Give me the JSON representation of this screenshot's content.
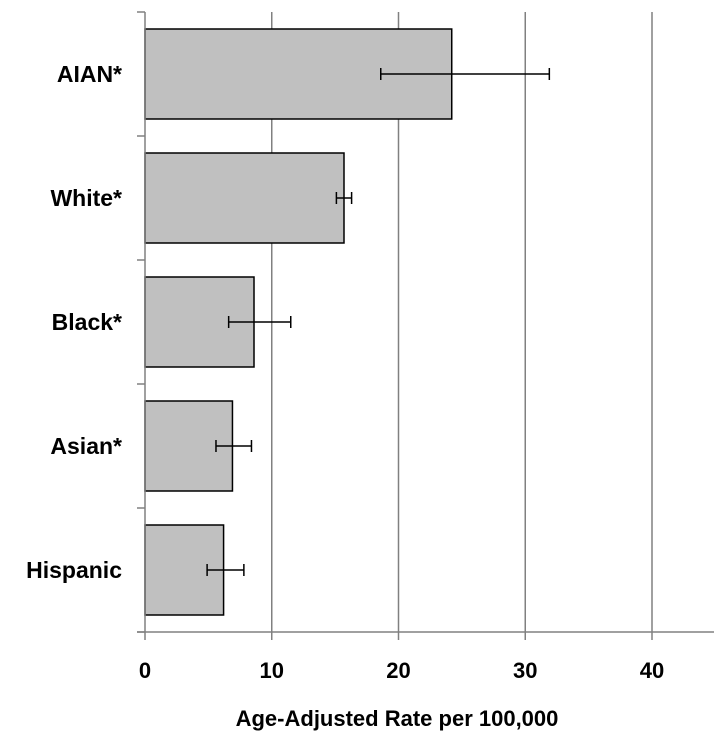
{
  "chart_data": {
    "type": "bar",
    "orientation": "horizontal",
    "title": "",
    "xlabel": "Age-Adjusted Rate per 100,000",
    "ylabel": "",
    "xlim": [
      0,
      45
    ],
    "x_ticks": [
      0,
      10,
      20,
      30,
      40
    ],
    "grid": "vertical",
    "legend": "none",
    "categories": [
      "AIAN*",
      "White*",
      "Black*",
      "Asian*",
      "Hispanic"
    ],
    "values": [
      24.2,
      15.7,
      8.6,
      6.9,
      6.2
    ],
    "error_low": [
      18.6,
      15.1,
      6.6,
      5.6,
      4.9
    ],
    "error_high": [
      31.9,
      16.3,
      11.5,
      8.4,
      7.8
    ],
    "colors": {
      "bar_fill": "#c0c0c0",
      "bar_stroke": "#000000",
      "grid": "#808080",
      "axis": "#808080",
      "error_bar": "#000000"
    }
  }
}
